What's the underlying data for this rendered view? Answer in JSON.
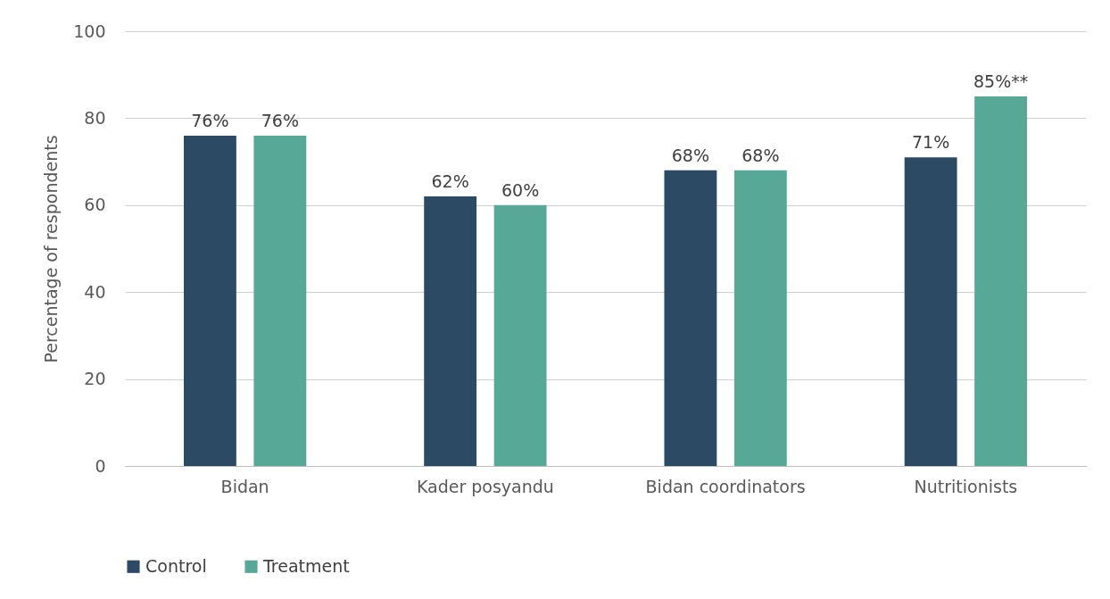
{
  "chart_data": {
    "type": "bar",
    "ylabel": "Percentage of respondents",
    "categories": [
      "Bidan",
      "Kader posyandu",
      "Bidan coordinators",
      "Nutritionists"
    ],
    "series": [
      {
        "name": "Control",
        "color": "#2c4a63",
        "values": [
          76,
          62,
          68,
          71
        ],
        "value_labels": [
          "76%",
          "62%",
          "68%",
          "71%"
        ]
      },
      {
        "name": "Treatment",
        "color": "#57a896",
        "values": [
          76,
          60,
          68,
          85
        ],
        "value_labels": [
          "76%",
          "60%",
          "68%",
          "85%**"
        ]
      }
    ],
    "ylim": [
      0,
      100
    ],
    "yticks": [
      0,
      20,
      40,
      60,
      80,
      100
    ],
    "grid": "y",
    "legend": "bottom"
  }
}
